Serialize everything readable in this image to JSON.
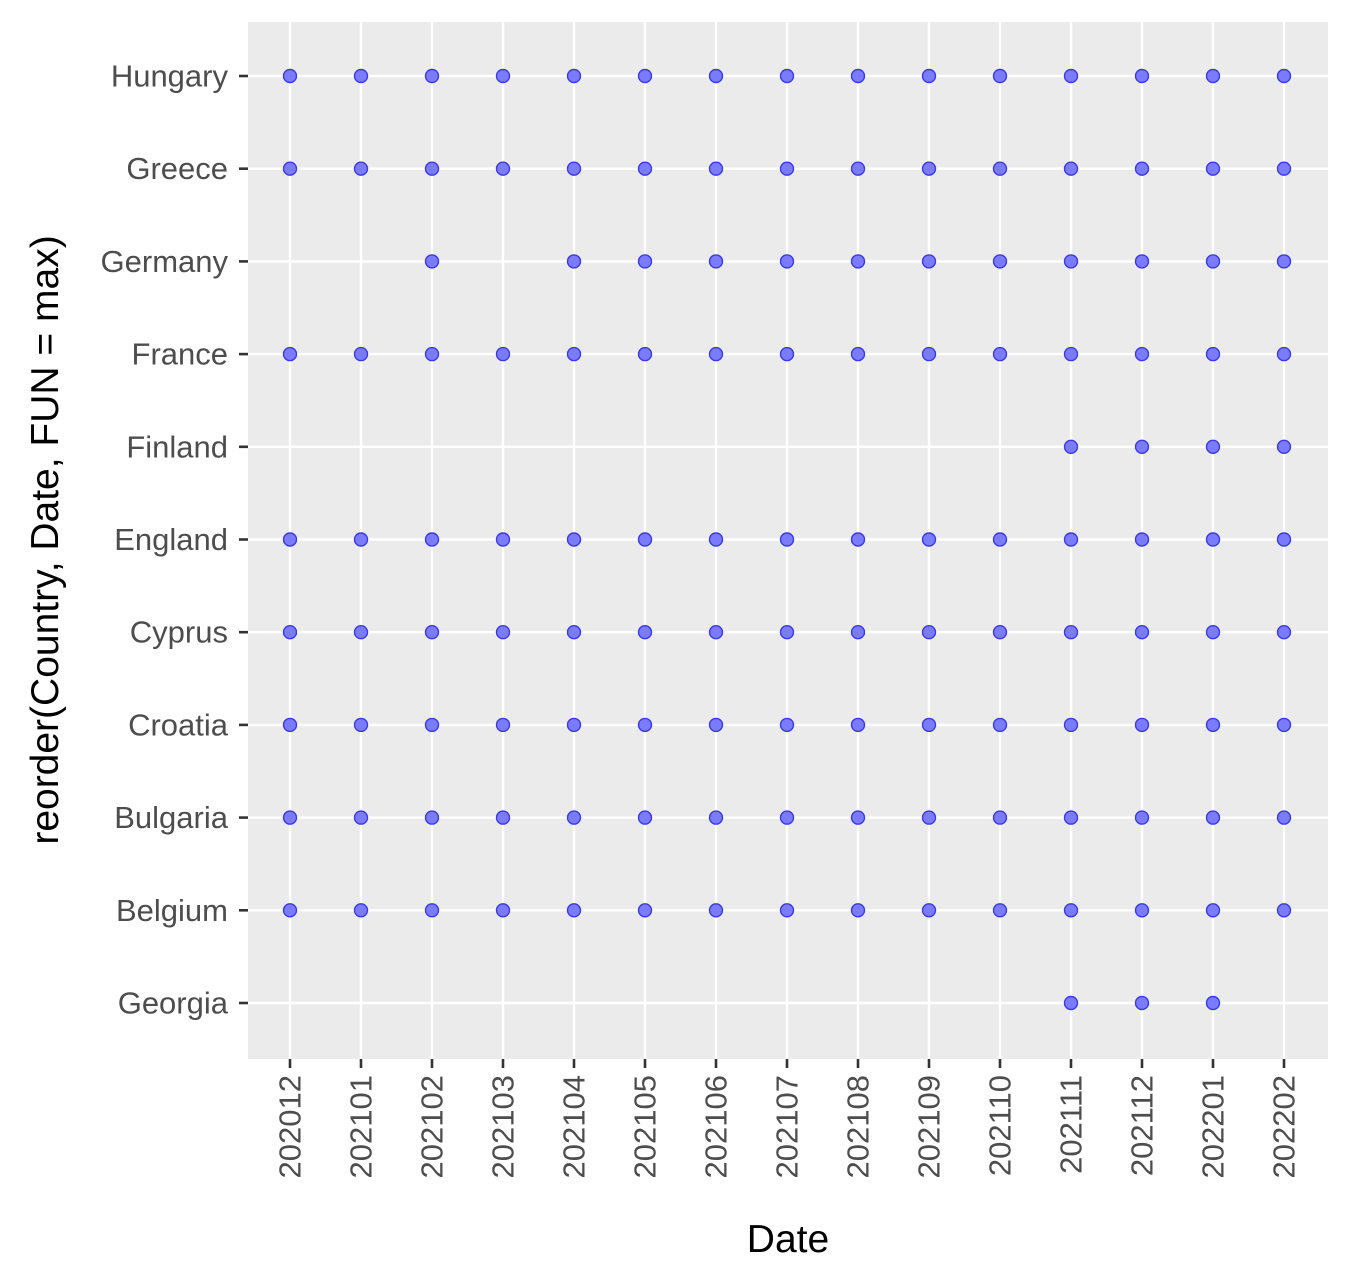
{
  "chart_data": {
    "type": "scatter",
    "xlabel": "Date",
    "ylabel": "reorder(Country, Date, FUN = max)",
    "x_categories": [
      "202012",
      "202101",
      "202102",
      "202103",
      "202104",
      "202105",
      "202106",
      "202107",
      "202108",
      "202109",
      "202110",
      "202111",
      "202112",
      "202201",
      "202202"
    ],
    "y_categories": [
      "Georgia",
      "Belgium",
      "Bulgaria",
      "Croatia",
      "Cyprus",
      "England",
      "Finland",
      "France",
      "Germany",
      "Greece",
      "Hungary"
    ],
    "grid": true,
    "legend": "none",
    "colors": {
      "panel": "#ebebeb",
      "grid": "#ffffff",
      "point_fill": "#7b7bff",
      "point_stroke": "#3a3adf",
      "tick_text": "#4d4d4d",
      "tick_mark": "#333333",
      "title_text": "#000000"
    },
    "points": {
      "Hungary": [
        "202012",
        "202101",
        "202102",
        "202103",
        "202104",
        "202105",
        "202106",
        "202107",
        "202108",
        "202109",
        "202110",
        "202111",
        "202112",
        "202201",
        "202202"
      ],
      "Greece": [
        "202012",
        "202101",
        "202102",
        "202103",
        "202104",
        "202105",
        "202106",
        "202107",
        "202108",
        "202109",
        "202110",
        "202111",
        "202112",
        "202201",
        "202202"
      ],
      "Germany": [
        "202102",
        "202104",
        "202105",
        "202106",
        "202107",
        "202108",
        "202109",
        "202110",
        "202111",
        "202112",
        "202201",
        "202202"
      ],
      "France": [
        "202012",
        "202101",
        "202102",
        "202103",
        "202104",
        "202105",
        "202106",
        "202107",
        "202108",
        "202109",
        "202110",
        "202111",
        "202112",
        "202201",
        "202202"
      ],
      "Finland": [
        "202111",
        "202112",
        "202201",
        "202202"
      ],
      "England": [
        "202012",
        "202101",
        "202102",
        "202103",
        "202104",
        "202105",
        "202106",
        "202107",
        "202108",
        "202109",
        "202110",
        "202111",
        "202112",
        "202201",
        "202202"
      ],
      "Cyprus": [
        "202012",
        "202101",
        "202102",
        "202103",
        "202104",
        "202105",
        "202106",
        "202107",
        "202108",
        "202109",
        "202110",
        "202111",
        "202112",
        "202201",
        "202202"
      ],
      "Croatia": [
        "202012",
        "202101",
        "202102",
        "202103",
        "202104",
        "202105",
        "202106",
        "202107",
        "202108",
        "202109",
        "202110",
        "202111",
        "202112",
        "202201",
        "202202"
      ],
      "Bulgaria": [
        "202012",
        "202101",
        "202102",
        "202103",
        "202104",
        "202105",
        "202106",
        "202107",
        "202108",
        "202109",
        "202110",
        "202111",
        "202112",
        "202201",
        "202202"
      ],
      "Belgium": [
        "202012",
        "202101",
        "202102",
        "202103",
        "202104",
        "202105",
        "202106",
        "202107",
        "202108",
        "202109",
        "202110",
        "202111",
        "202112",
        "202201",
        "202202"
      ],
      "Georgia": [
        "202111",
        "202112",
        "202201"
      ]
    }
  }
}
